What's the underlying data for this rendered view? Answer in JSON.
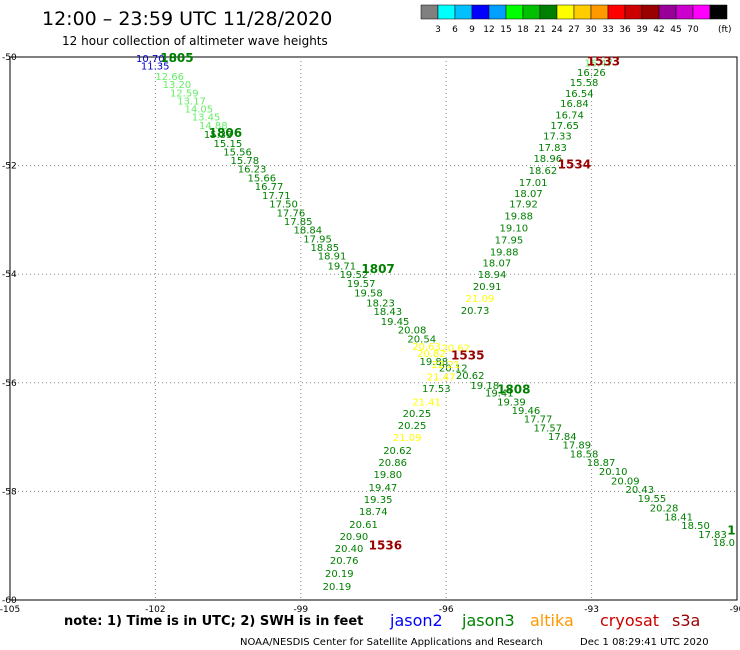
{
  "header": {
    "title": "12:00 – 23:59 UTC 11/28/2020",
    "subtitle": "12 hour collection of altimeter wave heights"
  },
  "colorbar": {
    "colors": [
      "#808080",
      "#00ffff",
      "#00c0ff",
      "#0000ff",
      "#00a0ff",
      "#00ff00",
      "#00c000",
      "#008000",
      "#ffff00",
      "#ffcc00",
      "#ff9900",
      "#ff0000",
      "#cc0000",
      "#990000",
      "#990099",
      "#cc00cc",
      "#ff00ff",
      "#000000"
    ],
    "labels": [
      "3",
      "6",
      "9",
      "12",
      "15",
      "18",
      "21",
      "24",
      "27",
      "30",
      "33",
      "36",
      "39",
      "42",
      "45",
      "70"
    ],
    "unit": "(ft)"
  },
  "footer": {
    "note": "note:  1) Time is in UTC;  2) SWH is in feet",
    "credit": "NOAA/NESDIS Center for Satellite Applications and Research",
    "timestamp": "Dec  1 08:29:41 UTC 2020"
  },
  "legend": [
    {
      "name": "jason2",
      "color": "#0000ff"
    },
    {
      "name": "jason3",
      "color": "#008000"
    },
    {
      "name": "altika",
      "color": "#ff9900"
    },
    {
      "name": "cryosat",
      "color": "#cc0000"
    },
    {
      "name": "s3a",
      "color": "#990000"
    }
  ],
  "chart_data": {
    "type": "scatter",
    "xlim": [
      -105,
      -90
    ],
    "ylim": [
      -60,
      -50
    ],
    "xticks": [
      "-105",
      "-102",
      "-99",
      "-96",
      "-93",
      "-90"
    ],
    "yticks": [
      "-50",
      "-52",
      "-54",
      "-56",
      "-58",
      "-60"
    ],
    "grid": true,
    "points": [
      {
        "x": -102.4,
        "y": -50.02,
        "v": "10.70",
        "c": "#0000cc"
      },
      {
        "x": -102.3,
        "y": -50.16,
        "v": "11.35",
        "c": "#0000cc"
      },
      {
        "x": -102.0,
        "y": -50.35,
        "v": "12.66",
        "c": "#66ee66"
      },
      {
        "x": -101.85,
        "y": -50.5,
        "v": "13.20",
        "c": "#66ee66"
      },
      {
        "x": -101.7,
        "y": -50.65,
        "v": "12.59",
        "c": "#66ee66"
      },
      {
        "x": -101.55,
        "y": -50.8,
        "v": "13.17",
        "c": "#66ee66"
      },
      {
        "x": -101.4,
        "y": -50.95,
        "v": "14.05",
        "c": "#66ee66"
      },
      {
        "x": -101.25,
        "y": -51.1,
        "v": "13.45",
        "c": "#66ee66"
      },
      {
        "x": -101.1,
        "y": -51.25,
        "v": "14.88",
        "c": "#66ee66"
      },
      {
        "x": -101.0,
        "y": -51.42,
        "v": "15.33",
        "c": "#008000"
      },
      {
        "x": -100.8,
        "y": -51.58,
        "v": "15.15",
        "c": "#008000"
      },
      {
        "x": -100.6,
        "y": -51.74,
        "v": "15.56",
        "c": "#008000"
      },
      {
        "x": -100.45,
        "y": -51.9,
        "v": "15.78",
        "c": "#008000"
      },
      {
        "x": -100.3,
        "y": -52.05,
        "v": "16.23",
        "c": "#008000"
      },
      {
        "x": -100.1,
        "y": -52.22,
        "v": "15.66",
        "c": "#008000"
      },
      {
        "x": -99.95,
        "y": -52.38,
        "v": "16.77",
        "c": "#008000"
      },
      {
        "x": -99.8,
        "y": -52.54,
        "v": "17.71",
        "c": "#008000"
      },
      {
        "x": -99.65,
        "y": -52.7,
        "v": "17.50",
        "c": "#008000"
      },
      {
        "x": -99.5,
        "y": -52.86,
        "v": "17.76",
        "c": "#008000"
      },
      {
        "x": -99.35,
        "y": -53.02,
        "v": "17.85",
        "c": "#008000"
      },
      {
        "x": -99.15,
        "y": -53.18,
        "v": "18.84",
        "c": "#008000"
      },
      {
        "x": -98.95,
        "y": -53.34,
        "v": "17.95",
        "c": "#008000"
      },
      {
        "x": -98.8,
        "y": -53.5,
        "v": "18.85",
        "c": "#008000"
      },
      {
        "x": -98.65,
        "y": -53.66,
        "v": "18.91",
        "c": "#008000"
      },
      {
        "x": -98.45,
        "y": -53.84,
        "v": "19.71",
        "c": "#008000"
      },
      {
        "x": -98.2,
        "y": -54.0,
        "v": "19.52",
        "c": "#008000"
      },
      {
        "x": -98.05,
        "y": -54.16,
        "v": "19.57",
        "c": "#008000"
      },
      {
        "x": -97.9,
        "y": -54.34,
        "v": "19.58",
        "c": "#008000"
      },
      {
        "x": -97.65,
        "y": -54.52,
        "v": "18.23",
        "c": "#008000"
      },
      {
        "x": -97.5,
        "y": -54.68,
        "v": "18.43",
        "c": "#008000"
      },
      {
        "x": -97.35,
        "y": -54.86,
        "v": "19.45",
        "c": "#008000"
      },
      {
        "x": -97.0,
        "y": -55.02,
        "v": "20.08",
        "c": "#008000"
      },
      {
        "x": -96.8,
        "y": -55.18,
        "v": "20.54",
        "c": "#008000"
      },
      {
        "x": -96.7,
        "y": -55.32,
        "v": "20.63",
        "c": "#ffff00"
      },
      {
        "x": -96.6,
        "y": -55.45,
        "v": "20.82",
        "c": "#ffff00"
      },
      {
        "x": -96.55,
        "y": -55.6,
        "v": "19.88",
        "c": "#008000"
      },
      {
        "x": -96.15,
        "y": -55.72,
        "v": "20.12",
        "c": "#008000"
      },
      {
        "x": -95.8,
        "y": -55.86,
        "v": "20.62",
        "c": "#008000"
      },
      {
        "x": -95.5,
        "y": -56.04,
        "v": "19.18",
        "c": "#008000"
      },
      {
        "x": -95.2,
        "y": -56.18,
        "v": "19.41",
        "c": "#008000"
      },
      {
        "x": -94.95,
        "y": -56.34,
        "v": "19.39",
        "c": "#008000"
      },
      {
        "x": -94.65,
        "y": -56.5,
        "v": "19.46",
        "c": "#008000"
      },
      {
        "x": -94.4,
        "y": -56.66,
        "v": "17.77",
        "c": "#008000"
      },
      {
        "x": -94.2,
        "y": -56.82,
        "v": "17.57",
        "c": "#008000"
      },
      {
        "x": -93.9,
        "y": -56.98,
        "v": "17.84",
        "c": "#008000"
      },
      {
        "x": -93.6,
        "y": -57.14,
        "v": "17.89",
        "c": "#008000"
      },
      {
        "x": -93.45,
        "y": -57.3,
        "v": "18.58",
        "c": "#008000"
      },
      {
        "x": -93.1,
        "y": -57.46,
        "v": "18.87",
        "c": "#008000"
      },
      {
        "x": -92.85,
        "y": -57.62,
        "v": "20.10",
        "c": "#008000"
      },
      {
        "x": -92.6,
        "y": -57.8,
        "v": "20.09",
        "c": "#008000"
      },
      {
        "x": -92.3,
        "y": -57.96,
        "v": "20.43",
        "c": "#008000"
      },
      {
        "x": -92.05,
        "y": -58.12,
        "v": "19.55",
        "c": "#008000"
      },
      {
        "x": -91.8,
        "y": -58.3,
        "v": "20.28",
        "c": "#008000"
      },
      {
        "x": -91.5,
        "y": -58.46,
        "v": "18.41",
        "c": "#008000"
      },
      {
        "x": -91.15,
        "y": -58.62,
        "v": "18.50",
        "c": "#008000"
      },
      {
        "x": -90.8,
        "y": -58.78,
        "v": "17.83",
        "c": "#008000"
      },
      {
        "x": -90.5,
        "y": -58.93,
        "v": "18.0",
        "c": "#008000"
      },
      {
        "x": -93.15,
        "y": -50.1,
        "v": "16.47",
        "c": "#66ee66"
      },
      {
        "x": -93.3,
        "y": -50.28,
        "v": "16.26",
        "c": "#008000"
      },
      {
        "x": -93.45,
        "y": -50.46,
        "v": "15.58",
        "c": "#008000"
      },
      {
        "x": -93.55,
        "y": -50.66,
        "v": "16.54",
        "c": "#008000"
      },
      {
        "x": -93.65,
        "y": -50.85,
        "v": "16.84",
        "c": "#008000"
      },
      {
        "x": -93.75,
        "y": -51.06,
        "v": "16.74",
        "c": "#008000"
      },
      {
        "x": -93.85,
        "y": -51.25,
        "v": "17.65",
        "c": "#008000"
      },
      {
        "x": -94.0,
        "y": -51.45,
        "v": "17.33",
        "c": "#008000"
      },
      {
        "x": -94.1,
        "y": -51.66,
        "v": "17.83",
        "c": "#008000"
      },
      {
        "x": -94.2,
        "y": -51.86,
        "v": "18.96",
        "c": "#008000"
      },
      {
        "x": -94.3,
        "y": -52.08,
        "v": "18.62",
        "c": "#008000"
      },
      {
        "x": -94.5,
        "y": -52.3,
        "v": "17.01",
        "c": "#008000"
      },
      {
        "x": -94.6,
        "y": -52.5,
        "v": "18.07",
        "c": "#008000"
      },
      {
        "x": -94.7,
        "y": -52.7,
        "v": "17.92",
        "c": "#008000"
      },
      {
        "x": -94.8,
        "y": -52.92,
        "v": "19.88",
        "c": "#008000"
      },
      {
        "x": -94.9,
        "y": -53.14,
        "v": "19.10",
        "c": "#008000"
      },
      {
        "x": -95.0,
        "y": -53.36,
        "v": "17.95",
        "c": "#008000"
      },
      {
        "x": -95.1,
        "y": -53.58,
        "v": "19.88",
        "c": "#008000"
      },
      {
        "x": -95.25,
        "y": -53.78,
        "v": "18.07",
        "c": "#008000"
      },
      {
        "x": -95.35,
        "y": -54.0,
        "v": "18.94",
        "c": "#008000"
      },
      {
        "x": -95.45,
        "y": -54.22,
        "v": "20.91",
        "c": "#008000"
      },
      {
        "x": -95.6,
        "y": -54.44,
        "v": "21.09",
        "c": "#ffff00"
      },
      {
        "x": -95.7,
        "y": -54.66,
        "v": "20.73",
        "c": "#008000"
      },
      {
        "x": -96.1,
        "y": -55.35,
        "v": "20.62",
        "c": "#ffff00"
      },
      {
        "x": -96.3,
        "y": -55.65,
        "v": "22.21",
        "c": "#ffff00"
      },
      {
        "x": -96.4,
        "y": -55.88,
        "v": "21.47",
        "c": "#ffff00"
      },
      {
        "x": -96.5,
        "y": -56.1,
        "v": "17.53",
        "c": "#008000"
      },
      {
        "x": -96.7,
        "y": -56.34,
        "v": "21.41",
        "c": "#ffff00"
      },
      {
        "x": -96.9,
        "y": -56.56,
        "v": "20.25",
        "c": "#008000"
      },
      {
        "x": -97.0,
        "y": -56.78,
        "v": "20.25",
        "c": "#008000"
      },
      {
        "x": -97.1,
        "y": -57.0,
        "v": "21.09",
        "c": "#ffff00"
      },
      {
        "x": -97.3,
        "y": -57.24,
        "v": "20.62",
        "c": "#008000"
      },
      {
        "x": -97.4,
        "y": -57.46,
        "v": "20.86",
        "c": "#008000"
      },
      {
        "x": -97.5,
        "y": -57.68,
        "v": "19.80",
        "c": "#008000"
      },
      {
        "x": -97.6,
        "y": -57.92,
        "v": "19.47",
        "c": "#008000"
      },
      {
        "x": -97.7,
        "y": -58.14,
        "v": "19.35",
        "c": "#008000"
      },
      {
        "x": -97.8,
        "y": -58.36,
        "v": "18.74",
        "c": "#008000"
      },
      {
        "x": -98.0,
        "y": -58.6,
        "v": "20.61",
        "c": "#008000"
      },
      {
        "x": -98.2,
        "y": -58.82,
        "v": "20.90",
        "c": "#008000"
      },
      {
        "x": -98.3,
        "y": -59.04,
        "v": "20.40",
        "c": "#008000"
      },
      {
        "x": -98.4,
        "y": -59.26,
        "v": "20.76",
        "c": "#008000"
      },
      {
        "x": -98.5,
        "y": -59.5,
        "v": "20.19",
        "c": "#008000"
      },
      {
        "x": -98.55,
        "y": -59.74,
        "v": "20.19",
        "c": "#008000"
      }
    ],
    "time_labels": [
      {
        "x": -101.9,
        "y": -50.02,
        "v": "1805",
        "c": "#008000"
      },
      {
        "x": -100.9,
        "y": -51.4,
        "v": "1806",
        "c": "#008000"
      },
      {
        "x": -97.75,
        "y": -53.9,
        "v": "1807",
        "c": "#008000"
      },
      {
        "x": -94.95,
        "y": -56.12,
        "v": "1808",
        "c": "#008000"
      },
      {
        "x": -90.2,
        "y": -58.72,
        "v": "1",
        "c": "#008000"
      },
      {
        "x": -93.1,
        "y": -50.08,
        "v": "1533",
        "c": "#990000"
      },
      {
        "x": -93.7,
        "y": -51.98,
        "v": "1534",
        "c": "#990000"
      },
      {
        "x": -95.9,
        "y": -55.5,
        "v": "1535",
        "c": "#990000"
      },
      {
        "x": -97.6,
        "y": -59.0,
        "v": "1536",
        "c": "#990000"
      }
    ]
  }
}
